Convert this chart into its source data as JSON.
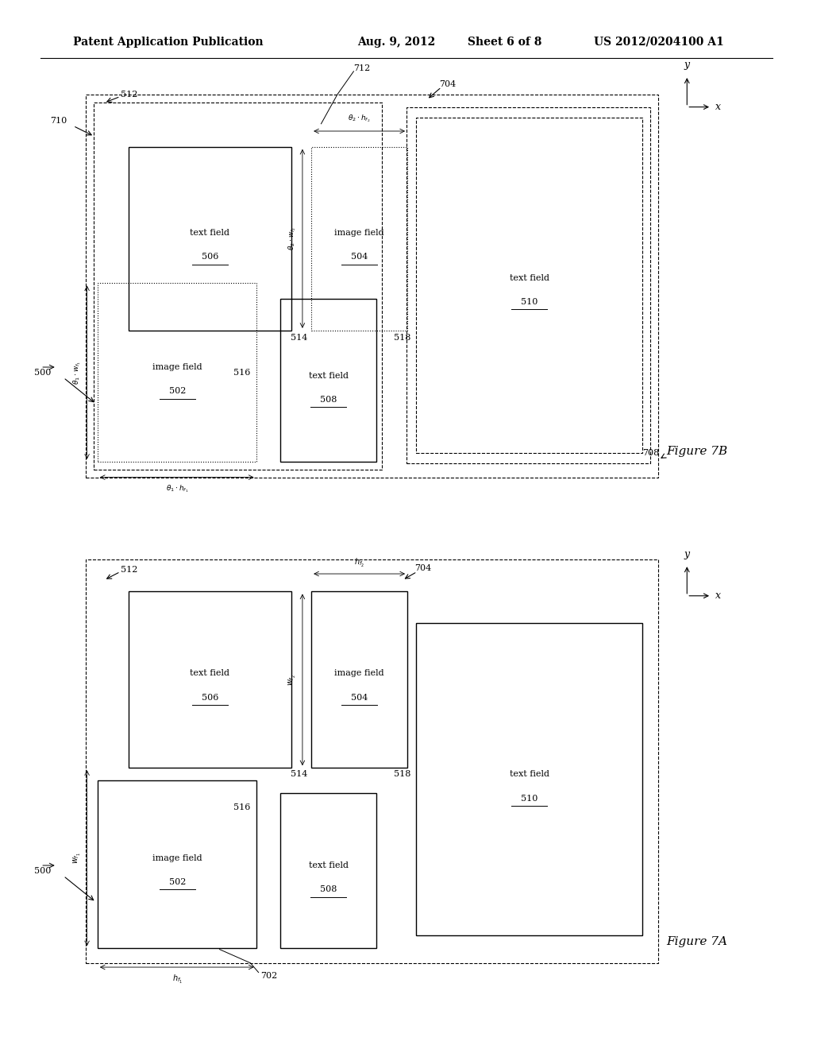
{
  "bg_color": "#ffffff",
  "header_text": "Patent Application Publication",
  "header_date": "Aug. 9, 2012",
  "header_sheet": "Sheet 6 of 8",
  "header_patent": "US 2012/0204100 A1",
  "fig7b": {
    "title": "Figure 7B",
    "label_500": "500",
    "label_512": "512",
    "label_710": "710",
    "label_704": "704",
    "label_708": "708",
    "label_712": "712",
    "label_506": "506",
    "label_502": "502",
    "label_504": "504",
    "label_508": "508",
    "label_510": "510",
    "label_514": "514",
    "label_516": "516",
    "label_518": "518"
  },
  "fig7a": {
    "title": "Figure 7A",
    "label_500": "500",
    "label_512": "512",
    "label_704": "704",
    "label_702": "702",
    "label_506": "506",
    "label_502": "502",
    "label_504": "504",
    "label_508": "508",
    "label_510": "510",
    "label_514": "514",
    "label_516": "516",
    "label_518": "518"
  }
}
